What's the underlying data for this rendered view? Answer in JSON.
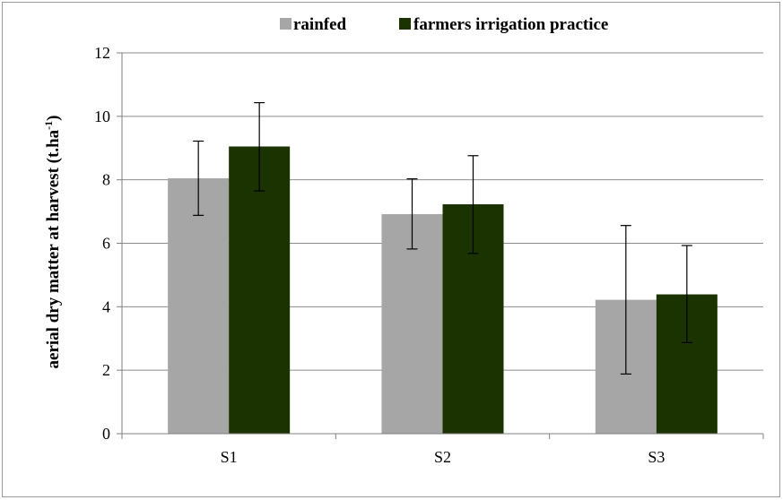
{
  "chart_data": {
    "type": "bar",
    "categories": [
      "S1",
      "S2",
      "S3"
    ],
    "series": [
      {
        "name": "rainfed",
        "color": "#a6a6a6",
        "values": [
          8.05,
          6.92,
          4.22
        ],
        "err_low": [
          6.88,
          5.82,
          1.88
        ],
        "err_high": [
          9.22,
          8.03,
          6.56
        ]
      },
      {
        "name": "farmers irrigation practice",
        "color": "#1b3300",
        "values": [
          9.05,
          7.23,
          4.39
        ],
        "err_low": [
          7.65,
          5.68,
          2.87
        ],
        "err_high": [
          10.43,
          8.76,
          5.93
        ]
      }
    ],
    "title": "",
    "xlabel": "",
    "ylabel": "aerial dry matter at harvest (t.ha",
    "ylabel_sup": "-1",
    "ylabel_close": ")",
    "ylim": [
      0,
      12
    ],
    "yticks": [
      "0",
      "2",
      "4",
      "6",
      "8",
      "10",
      "12"
    ],
    "grid": true,
    "legend_position": "top"
  }
}
